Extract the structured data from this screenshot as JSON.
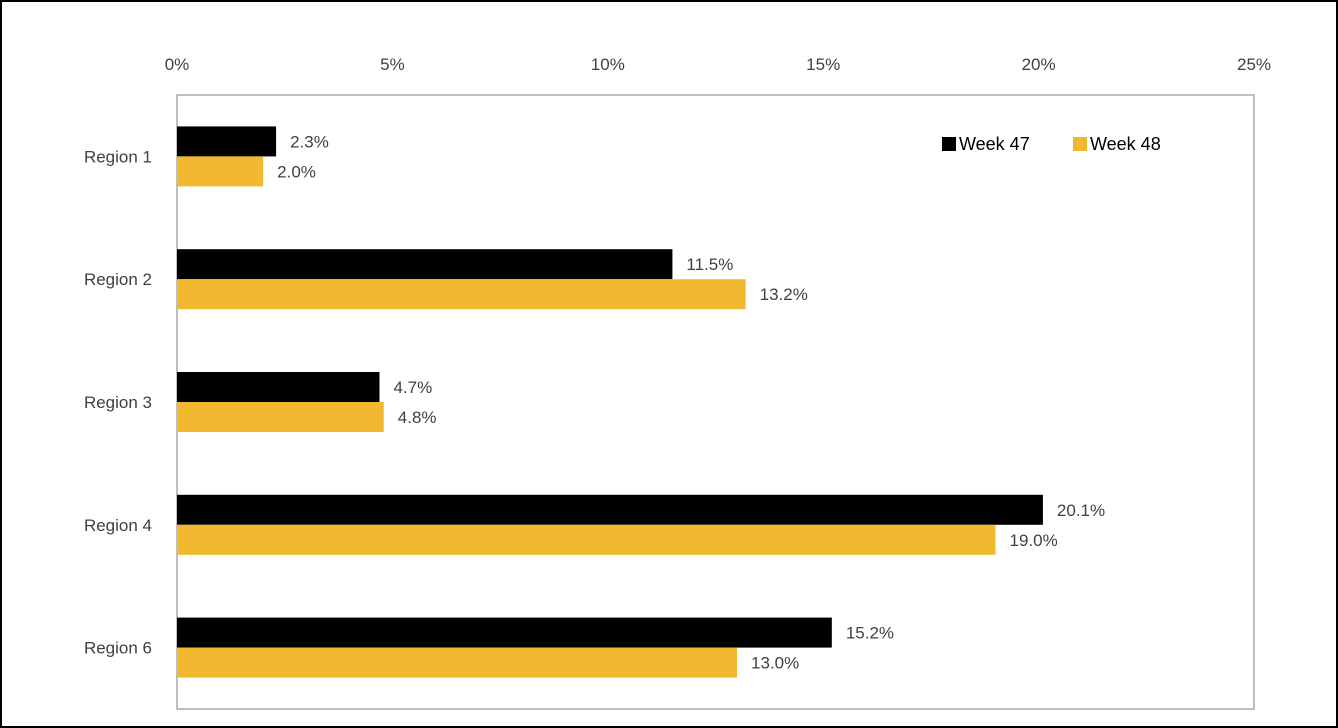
{
  "chart_data": {
    "type": "bar",
    "orientation": "horizontal",
    "categories": [
      "Region 1",
      "Region 2",
      "Region 3",
      "Region 4",
      "Region 6"
    ],
    "series": [
      {
        "name": "Week 47",
        "color": "#000000",
        "values": [
          2.3,
          11.5,
          4.7,
          20.1,
          15.2
        ],
        "labels": [
          "2.3%",
          "11.5%",
          "4.7%",
          "20.1%",
          "15.2%"
        ]
      },
      {
        "name": "Week 48",
        "color": "#F0B92F",
        "values": [
          2.0,
          13.2,
          4.8,
          19.0,
          13.0
        ],
        "labels": [
          "2.0%",
          "13.2%",
          "4.8%",
          "19.0%",
          "13.0%"
        ]
      }
    ],
    "xlim": [
      0,
      25
    ],
    "xticks": [
      0,
      5,
      10,
      15,
      20,
      25
    ],
    "xtick_labels": [
      "0%",
      "5%",
      "10%",
      "15%",
      "20%",
      "25%"
    ],
    "x_axis_position": "top",
    "grid": false,
    "legend_position": "top-right"
  }
}
